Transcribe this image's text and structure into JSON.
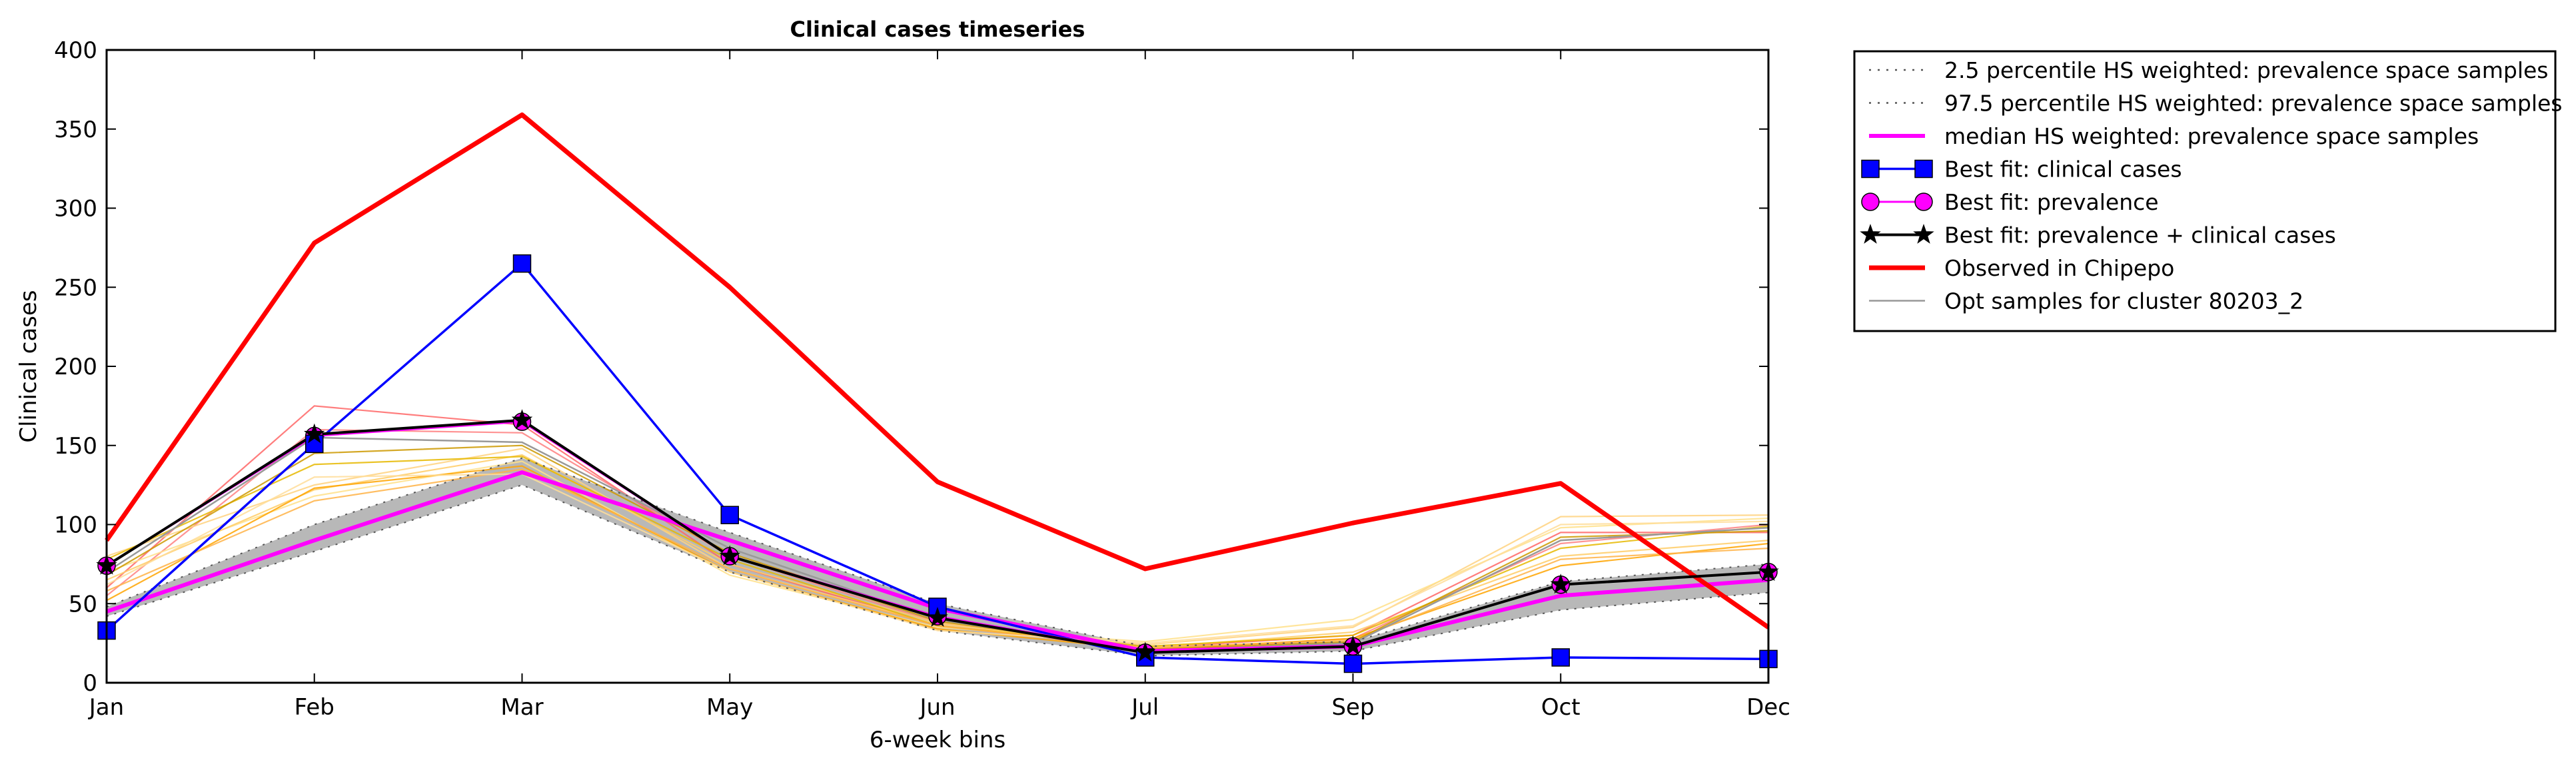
{
  "chart_data": {
    "type": "line",
    "title": "Clinical cases timeseries",
    "xlabel": "6-week bins",
    "ylabel": "Clinical cases",
    "categories": [
      "Jan",
      "Feb",
      "Mar",
      "May",
      "Jun",
      "Jul",
      "Sep",
      "Oct",
      "Dec"
    ],
    "ylim": [
      0,
      400
    ],
    "yticks": [
      0,
      50,
      100,
      150,
      200,
      250,
      300,
      350,
      400
    ],
    "grid": false,
    "legend_position": "outside-top-right",
    "band": {
      "lower": [
        42,
        83,
        125,
        70,
        33,
        17,
        20,
        46,
        57
      ],
      "upper": [
        48,
        100,
        142,
        95,
        50,
        23,
        26,
        64,
        75
      ],
      "color": "#b0b0b0"
    },
    "series": [
      {
        "name": "2.5 percentile HS weighted: prevalence space samples",
        "style": "dotted",
        "color": "#555555",
        "values": [
          42,
          83,
          125,
          70,
          33,
          17,
          20,
          46,
          57
        ]
      },
      {
        "name": "97.5 percentile HS weighted: prevalence space samples",
        "style": "dotted",
        "color": "#555555",
        "values": [
          48,
          100,
          142,
          95,
          50,
          23,
          26,
          64,
          75
        ]
      },
      {
        "name": "median HS weighted: prevalence space samples",
        "style": "solid",
        "color": "#ff00ff",
        "values": [
          45,
          90,
          133,
          90,
          47,
          20,
          23,
          55,
          65
        ]
      },
      {
        "name": "Best fit: clinical cases",
        "style": "solid",
        "color": "#0000ff",
        "marker": "square",
        "values": [
          33,
          151,
          265,
          106,
          48,
          16,
          12,
          16,
          15
        ]
      },
      {
        "name": "Best fit: prevalence",
        "style": "solid",
        "color": "#ff00ff",
        "marker": "circle",
        "values": [
          74,
          156,
          165,
          80,
          42,
          19,
          23,
          62,
          70
        ]
      },
      {
        "name": "Best fit: prevalence + clinical cases",
        "style": "solid",
        "color": "#000000",
        "marker": "star",
        "values": [
          74,
          157,
          166,
          80,
          41,
          19,
          23,
          62,
          70
        ]
      },
      {
        "name": "Observed in Chipepo",
        "style": "solid",
        "color": "#ff0000",
        "values": [
          90,
          278,
          359,
          250,
          127,
          72,
          101,
          126,
          35
        ]
      },
      {
        "name": "Opt samples for cluster 80203_2",
        "style": "solid",
        "color": "#999999",
        "values": [
          70,
          155,
          152,
          85,
          40,
          20,
          25,
          90,
          98
        ]
      }
    ],
    "samples": [
      {
        "color": "#ff6666",
        "values": [
          60,
          175,
          163,
          75,
          36,
          22,
          30,
          95,
          95
        ]
      },
      {
        "color": "#ff8080",
        "values": [
          55,
          160,
          158,
          80,
          38,
          20,
          28,
          88,
          100
        ]
      },
      {
        "color": "#ffd27f",
        "values": [
          80,
          125,
          148,
          72,
          37,
          24,
          35,
          105,
          106
        ]
      },
      {
        "color": "#ffe08a",
        "values": [
          70,
          118,
          140,
          68,
          35,
          26,
          40,
          98,
          104
        ]
      },
      {
        "color": "#ffcc66",
        "values": [
          65,
          122,
          144,
          75,
          38,
          22,
          32,
          80,
          90
        ]
      },
      {
        "color": "#ffa500",
        "values": [
          52,
          123,
          137,
          70,
          34,
          21,
          28,
          74,
          88
        ]
      },
      {
        "color": "#e6b800",
        "values": [
          78,
          138,
          143,
          78,
          36,
          23,
          30,
          85,
          99
        ]
      },
      {
        "color": "#ffb347",
        "values": [
          58,
          115,
          135,
          72,
          36,
          22,
          27,
          78,
          85
        ]
      },
      {
        "color": "#cc9900",
        "values": [
          68,
          145,
          150,
          82,
          39,
          21,
          26,
          92,
          96
        ]
      },
      {
        "color": "#ffdd99",
        "values": [
          62,
          130,
          132,
          70,
          33,
          25,
          36,
          100,
          102
        ]
      }
    ]
  }
}
